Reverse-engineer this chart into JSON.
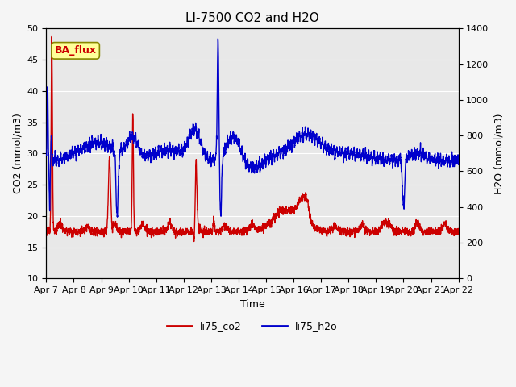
{
  "title": "LI-7500 CO2 and H2O",
  "ylabel_left": "CO2 (mmol/m3)",
  "ylabel_right": "H2O (mmol/m3)",
  "xlabel": "Time",
  "ylim_left": [
    10,
    50
  ],
  "ylim_right": [
    0,
    1400
  ],
  "yticks_left": [
    10,
    15,
    20,
    25,
    30,
    35,
    40,
    45,
    50
  ],
  "yticks_right": [
    0,
    200,
    400,
    600,
    800,
    1000,
    1200,
    1400
  ],
  "xtick_labels": [
    "Apr 7",
    "Apr 8",
    "Apr 9",
    "Apr 10",
    "Apr 11",
    "Apr 12",
    "Apr 13",
    "Apr 14",
    "Apr 15",
    "Apr 16",
    "Apr 17",
    "Apr 18",
    "Apr 19",
    "Apr 20",
    "Apr 21",
    "Apr 22"
  ],
  "co2_color": "#cc0000",
  "h2o_color": "#0000cc",
  "background_color": "#e8e8e8",
  "grid_color": "#ffffff",
  "legend_label_co2": "li75_co2",
  "legend_label_h2o": "li75_h2o",
  "annotation_text": "BA_flux",
  "annotation_color": "#cc0000",
  "annotation_bg": "#ffff99",
  "annotation_border": "#888800",
  "title_fontsize": 11,
  "axis_fontsize": 9,
  "tick_fontsize": 8,
  "legend_fontsize": 9,
  "line_width": 1.0
}
